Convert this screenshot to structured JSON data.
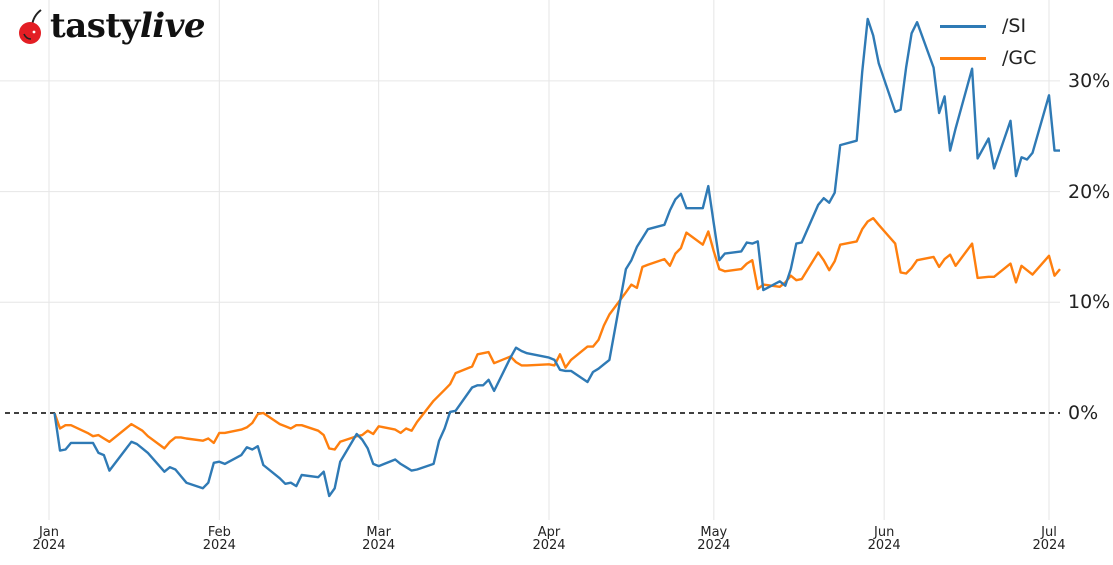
{
  "logo": {
    "brand_part1": "tasty",
    "brand_part2": "live",
    "icon": "cherry-icon"
  },
  "colors": {
    "si": "#2f7ab5",
    "gc": "#ff7f0e",
    "grid": "#e6e6e6",
    "zero_line": "#000000"
  },
  "chart_data": {
    "type": "line",
    "title": "",
    "xlabel": "",
    "ylabel": "",
    "legend_position": "upper right",
    "grid": true,
    "yaxis_side": "right",
    "ylim": [
      -10,
      36
    ],
    "xlim": [
      "2024-01-01",
      "2024-07-01"
    ],
    "y_ticks": [
      {
        "value": 0,
        "label": "0%"
      },
      {
        "value": 10,
        "label": "10%"
      },
      {
        "value": 20,
        "label": "20%"
      },
      {
        "value": 30,
        "label": "30%"
      }
    ],
    "x_ticks": [
      {
        "date": "2024-01-01",
        "month": "Jan",
        "year": "2024"
      },
      {
        "date": "2024-02-01",
        "month": "Feb",
        "year": "2024"
      },
      {
        "date": "2024-03-01",
        "month": "Mar",
        "year": "2024"
      },
      {
        "date": "2024-04-01",
        "month": "Apr",
        "year": "2024"
      },
      {
        "date": "2024-05-01",
        "month": "May",
        "year": "2024"
      },
      {
        "date": "2024-06-01",
        "month": "Jun",
        "year": "2024"
      },
      {
        "date": "2024-07-01",
        "month": "Jul",
        "year": "2024"
      }
    ],
    "reference_line": {
      "y": 0,
      "style": "dashed"
    },
    "series": [
      {
        "name": "/SI",
        "color": "#2f7ab5",
        "points": [
          [
            "2024-01-02",
            0
          ],
          [
            "2024-01-03",
            -3.4
          ],
          [
            "2024-01-04",
            -3.3
          ],
          [
            "2024-01-05",
            -2.7
          ],
          [
            "2024-01-08",
            -2.7
          ],
          [
            "2024-01-09",
            -2.7
          ],
          [
            "2024-01-10",
            -3.6
          ],
          [
            "2024-01-11",
            -3.8
          ],
          [
            "2024-01-12",
            -5.2
          ],
          [
            "2024-01-16",
            -2.6
          ],
          [
            "2024-01-17",
            -2.8
          ],
          [
            "2024-01-18",
            -3.2
          ],
          [
            "2024-01-19",
            -3.6
          ],
          [
            "2024-01-22",
            -5.3
          ],
          [
            "2024-01-23",
            -4.9
          ],
          [
            "2024-01-24",
            -5.1
          ],
          [
            "2024-01-25",
            -5.7
          ],
          [
            "2024-01-26",
            -6.3
          ],
          [
            "2024-01-29",
            -6.8
          ],
          [
            "2024-01-30",
            -6.3
          ],
          [
            "2024-01-31",
            -4.5
          ],
          [
            "2024-02-01",
            -4.4
          ],
          [
            "2024-02-02",
            -4.6
          ],
          [
            "2024-02-05",
            -3.8
          ],
          [
            "2024-02-06",
            -3.1
          ],
          [
            "2024-02-07",
            -3.3
          ],
          [
            "2024-02-08",
            -3.0
          ],
          [
            "2024-02-09",
            -4.7
          ],
          [
            "2024-02-12",
            -5.9
          ],
          [
            "2024-02-13",
            -6.4
          ],
          [
            "2024-02-14",
            -6.3
          ],
          [
            "2024-02-15",
            -6.6
          ],
          [
            "2024-02-16",
            -5.6
          ],
          [
            "2024-02-19",
            -5.8
          ],
          [
            "2024-02-20",
            -5.3
          ],
          [
            "2024-02-21",
            -7.5
          ],
          [
            "2024-02-22",
            -6.8
          ],
          [
            "2024-02-23",
            -4.4
          ],
          [
            "2024-02-26",
            -1.9
          ],
          [
            "2024-02-27",
            -2.4
          ],
          [
            "2024-02-28",
            -3.2
          ],
          [
            "2024-02-29",
            -4.6
          ],
          [
            "2024-03-01",
            -4.8
          ],
          [
            "2024-03-04",
            -4.2
          ],
          [
            "2024-03-05",
            -4.6
          ],
          [
            "2024-03-06",
            -4.9
          ],
          [
            "2024-03-07",
            -5.2
          ],
          [
            "2024-03-08",
            -5.1
          ],
          [
            "2024-03-11",
            -4.6
          ],
          [
            "2024-03-12",
            -2.5
          ],
          [
            "2024-03-13",
            -1.4
          ],
          [
            "2024-03-14",
            0.1
          ],
          [
            "2024-03-15",
            0.2
          ],
          [
            "2024-03-18",
            2.3
          ],
          [
            "2024-03-19",
            2.5
          ],
          [
            "2024-03-20",
            2.5
          ],
          [
            "2024-03-21",
            3.0
          ],
          [
            "2024-03-22",
            2.0
          ],
          [
            "2024-03-25",
            5.0
          ],
          [
            "2024-03-26",
            5.9
          ],
          [
            "2024-03-27",
            5.6
          ],
          [
            "2024-03-28",
            5.4
          ],
          [
            "2024-04-01",
            5.0
          ],
          [
            "2024-04-02",
            4.8
          ],
          [
            "2024-04-03",
            3.9
          ],
          [
            "2024-04-04",
            3.8
          ],
          [
            "2024-04-05",
            3.8
          ],
          [
            "2024-04-08",
            2.8
          ],
          [
            "2024-04-09",
            3.7
          ],
          [
            "2024-04-10",
            4.0
          ],
          [
            "2024-04-11",
            4.4
          ],
          [
            "2024-04-12",
            4.8
          ],
          [
            "2024-04-15",
            13.0
          ],
          [
            "2024-04-16",
            13.8
          ],
          [
            "2024-04-17",
            15.0
          ],
          [
            "2024-04-18",
            15.8
          ],
          [
            "2024-04-19",
            16.6
          ],
          [
            "2024-04-22",
            17.0
          ],
          [
            "2024-04-23",
            18.3
          ],
          [
            "2024-04-24",
            19.3
          ],
          [
            "2024-04-25",
            19.8
          ],
          [
            "2024-04-26",
            18.5
          ],
          [
            "2024-04-29",
            18.5
          ],
          [
            "2024-04-30",
            20.5
          ],
          [
            "2024-05-01",
            17.1
          ],
          [
            "2024-05-02",
            13.8
          ],
          [
            "2024-05-03",
            14.4
          ],
          [
            "2024-05-06",
            14.6
          ],
          [
            "2024-05-07",
            15.4
          ],
          [
            "2024-05-08",
            15.3
          ],
          [
            "2024-05-09",
            15.5
          ],
          [
            "2024-05-10",
            11.1
          ],
          [
            "2024-05-13",
            11.9
          ],
          [
            "2024-05-14",
            11.5
          ],
          [
            "2024-05-15",
            13.0
          ],
          [
            "2024-05-16",
            15.3
          ],
          [
            "2024-05-17",
            15.4
          ],
          [
            "2024-05-20",
            18.8
          ],
          [
            "2024-05-21",
            19.4
          ],
          [
            "2024-05-22",
            19.0
          ],
          [
            "2024-05-23",
            19.9
          ],
          [
            "2024-05-24",
            24.2
          ],
          [
            "2024-05-27",
            24.6
          ],
          [
            "2024-05-28",
            30.8
          ],
          [
            "2024-05-29",
            35.6
          ],
          [
            "2024-05-30",
            34.1
          ],
          [
            "2024-05-31",
            31.6
          ],
          [
            "2024-06-03",
            27.2
          ],
          [
            "2024-06-04",
            27.4
          ],
          [
            "2024-06-05",
            31.2
          ],
          [
            "2024-06-06",
            34.3
          ],
          [
            "2024-06-07",
            35.3
          ],
          [
            "2024-06-10",
            31.2
          ],
          [
            "2024-06-11",
            27.1
          ],
          [
            "2024-06-12",
            28.6
          ],
          [
            "2024-06-13",
            23.7
          ],
          [
            "2024-06-14",
            25.7
          ],
          [
            "2024-06-17",
            31.1
          ],
          [
            "2024-06-18",
            23.0
          ],
          [
            "2024-06-20",
            24.8
          ],
          [
            "2024-06-21",
            22.1
          ],
          [
            "2024-06-24",
            26.4
          ],
          [
            "2024-06-25",
            21.4
          ],
          [
            "2024-06-26",
            23.1
          ],
          [
            "2024-06-27",
            22.9
          ],
          [
            "2024-06-28",
            23.5
          ],
          [
            "2024-07-01",
            28.7
          ],
          [
            "2024-07-02",
            23.7
          ],
          [
            "2024-07-03",
            23.7
          ]
        ]
      },
      {
        "name": "/GC",
        "color": "#ff7f0e",
        "points": [
          [
            "2024-01-02",
            0
          ],
          [
            "2024-01-03",
            -1.4
          ],
          [
            "2024-01-04",
            -1.1
          ],
          [
            "2024-01-05",
            -1.1
          ],
          [
            "2024-01-08",
            -1.8
          ],
          [
            "2024-01-09",
            -2.1
          ],
          [
            "2024-01-10",
            -2.0
          ],
          [
            "2024-01-11",
            -2.3
          ],
          [
            "2024-01-12",
            -2.6
          ],
          [
            "2024-01-16",
            -1.0
          ],
          [
            "2024-01-17",
            -1.3
          ],
          [
            "2024-01-18",
            -1.6
          ],
          [
            "2024-01-19",
            -2.1
          ],
          [
            "2024-01-22",
            -3.2
          ],
          [
            "2024-01-23",
            -2.6
          ],
          [
            "2024-01-24",
            -2.2
          ],
          [
            "2024-01-25",
            -2.2
          ],
          [
            "2024-01-26",
            -2.3
          ],
          [
            "2024-01-29",
            -2.5
          ],
          [
            "2024-01-30",
            -2.3
          ],
          [
            "2024-01-31",
            -2.7
          ],
          [
            "2024-02-01",
            -1.8
          ],
          [
            "2024-02-02",
            -1.8
          ],
          [
            "2024-02-05",
            -1.5
          ],
          [
            "2024-02-06",
            -1.3
          ],
          [
            "2024-02-07",
            -0.9
          ],
          [
            "2024-02-08",
            -0.1
          ],
          [
            "2024-02-09",
            0
          ],
          [
            "2024-02-12",
            -1.0
          ],
          [
            "2024-02-13",
            -1.2
          ],
          [
            "2024-02-14",
            -1.4
          ],
          [
            "2024-02-15",
            -1.1
          ],
          [
            "2024-02-16",
            -1.1
          ],
          [
            "2024-02-19",
            -1.6
          ],
          [
            "2024-02-20",
            -2.0
          ],
          [
            "2024-02-21",
            -3.2
          ],
          [
            "2024-02-22",
            -3.3
          ],
          [
            "2024-02-23",
            -2.6
          ],
          [
            "2024-02-26",
            -2.1
          ],
          [
            "2024-02-27",
            -2.0
          ],
          [
            "2024-02-28",
            -1.6
          ],
          [
            "2024-02-29",
            -1.9
          ],
          [
            "2024-03-01",
            -1.2
          ],
          [
            "2024-03-04",
            -1.5
          ],
          [
            "2024-03-05",
            -1.8
          ],
          [
            "2024-03-06",
            -1.4
          ],
          [
            "2024-03-07",
            -1.6
          ],
          [
            "2024-03-08",
            -0.8
          ],
          [
            "2024-03-11",
            1.1
          ],
          [
            "2024-03-12",
            1.6
          ],
          [
            "2024-03-13",
            2.1
          ],
          [
            "2024-03-14",
            2.6
          ],
          [
            "2024-03-15",
            3.6
          ],
          [
            "2024-03-18",
            4.2
          ],
          [
            "2024-03-19",
            5.3
          ],
          [
            "2024-03-20",
            5.4
          ],
          [
            "2024-03-21",
            5.5
          ],
          [
            "2024-03-22",
            4.5
          ],
          [
            "2024-03-25",
            5.1
          ],
          [
            "2024-03-26",
            4.6
          ],
          [
            "2024-03-27",
            4.3
          ],
          [
            "2024-03-28",
            4.3
          ],
          [
            "2024-04-01",
            4.4
          ],
          [
            "2024-04-02",
            4.3
          ],
          [
            "2024-04-03",
            5.3
          ],
          [
            "2024-04-04",
            4.1
          ],
          [
            "2024-04-05",
            4.8
          ],
          [
            "2024-04-08",
            6.0
          ],
          [
            "2024-04-09",
            6.0
          ],
          [
            "2024-04-10",
            6.6
          ],
          [
            "2024-04-11",
            7.9
          ],
          [
            "2024-04-12",
            8.9
          ],
          [
            "2024-04-15",
            10.9
          ],
          [
            "2024-04-16",
            11.6
          ],
          [
            "2024-04-17",
            11.3
          ],
          [
            "2024-04-18",
            13.2
          ],
          [
            "2024-04-19",
            13.4
          ],
          [
            "2024-04-22",
            13.9
          ],
          [
            "2024-04-23",
            13.3
          ],
          [
            "2024-04-24",
            14.4
          ],
          [
            "2024-04-25",
            14.9
          ],
          [
            "2024-04-26",
            16.3
          ],
          [
            "2024-04-29",
            15.2
          ],
          [
            "2024-04-30",
            16.4
          ],
          [
            "2024-05-01",
            14.6
          ],
          [
            "2024-05-02",
            13.0
          ],
          [
            "2024-05-03",
            12.8
          ],
          [
            "2024-05-06",
            13.0
          ],
          [
            "2024-05-07",
            13.5
          ],
          [
            "2024-05-08",
            13.8
          ],
          [
            "2024-05-09",
            11.2
          ],
          [
            "2024-05-10",
            11.6
          ],
          [
            "2024-05-13",
            11.4
          ],
          [
            "2024-05-14",
            11.8
          ],
          [
            "2024-05-15",
            12.4
          ],
          [
            "2024-05-16",
            12.0
          ],
          [
            "2024-05-17",
            12.1
          ],
          [
            "2024-05-20",
            14.5
          ],
          [
            "2024-05-21",
            13.8
          ],
          [
            "2024-05-22",
            12.9
          ],
          [
            "2024-05-23",
            13.7
          ],
          [
            "2024-05-24",
            15.2
          ],
          [
            "2024-05-27",
            15.5
          ],
          [
            "2024-05-28",
            16.6
          ],
          [
            "2024-05-29",
            17.3
          ],
          [
            "2024-05-30",
            17.6
          ],
          [
            "2024-05-31",
            17.0
          ],
          [
            "2024-06-03",
            15.3
          ],
          [
            "2024-06-04",
            12.7
          ],
          [
            "2024-06-05",
            12.6
          ],
          [
            "2024-06-06",
            13.1
          ],
          [
            "2024-06-07",
            13.8
          ],
          [
            "2024-06-10",
            14.1
          ],
          [
            "2024-06-11",
            13.2
          ],
          [
            "2024-06-12",
            13.9
          ],
          [
            "2024-06-13",
            14.3
          ],
          [
            "2024-06-14",
            13.3
          ],
          [
            "2024-06-17",
            15.3
          ],
          [
            "2024-06-18",
            12.2
          ],
          [
            "2024-06-20",
            12.3
          ],
          [
            "2024-06-21",
            12.3
          ],
          [
            "2024-06-24",
            13.5
          ],
          [
            "2024-06-25",
            11.8
          ],
          [
            "2024-06-26",
            13.3
          ],
          [
            "2024-06-27",
            12.9
          ],
          [
            "2024-06-28",
            12.5
          ],
          [
            "2024-07-01",
            14.2
          ],
          [
            "2024-07-02",
            12.4
          ],
          [
            "2024-07-03",
            13.0
          ]
        ]
      }
    ]
  },
  "legend": [
    {
      "label": "/SI",
      "color": "#2f7ab5"
    },
    {
      "label": "/GC",
      "color": "#ff7f0e"
    }
  ]
}
